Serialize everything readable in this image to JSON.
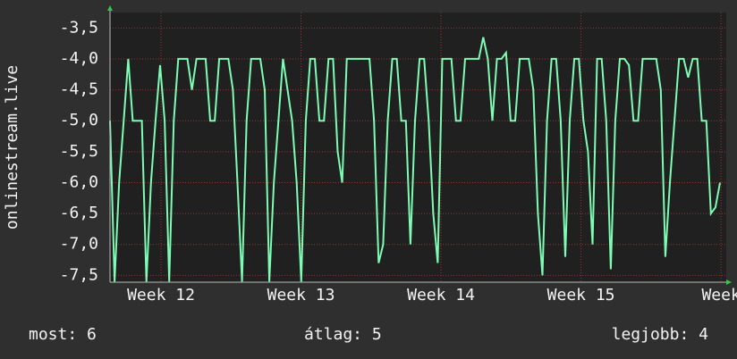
{
  "chart_data": {
    "type": "line",
    "y_label": "onlinestream.live",
    "values": [
      -5,
      -7.6,
      -6,
      -5,
      -4,
      -5,
      -5,
      -5,
      -7.6,
      -6,
      -5,
      -4.1,
      -5,
      -7.6,
      -5,
      -4,
      -4,
      -4,
      -4.5,
      -4,
      -4,
      -4,
      -5,
      -5,
      -4,
      -4,
      -4,
      -4.5,
      -6,
      -7.6,
      -5,
      -4,
      -4,
      -4,
      -4.5,
      -7.6,
      -6,
      -5,
      -4,
      -4.5,
      -5,
      -6,
      -7.6,
      -5,
      -4,
      -4,
      -5,
      -5,
      -4,
      -4,
      -5.5,
      -6,
      -4,
      -4,
      -4,
      -4,
      -4,
      -4,
      -5,
      -7.3,
      -7,
      -5,
      -4,
      -4,
      -5,
      -5,
      -7,
      -5,
      -4,
      -4,
      -5,
      -6.5,
      -7.3,
      -4,
      -4,
      -4,
      -5,
      -5,
      -4,
      -4,
      -4,
      -4,
      -3.65,
      -4,
      -5,
      -4,
      -4,
      -3.9,
      -5,
      -5,
      -4,
      -4,
      -4,
      -4.5,
      -6.5,
      -7.5,
      -5,
      -4,
      -4,
      -5,
      -7.2,
      -5,
      -4,
      -4,
      -5,
      -5.5,
      -7,
      -4,
      -4,
      -5,
      -7.4,
      -5,
      -4,
      -4,
      -4.1,
      -5,
      -5,
      -4,
      -4,
      -4,
      -4,
      -4.5,
      -7.2,
      -6,
      -5,
      -4,
      -4,
      -4.3,
      -4,
      -4,
      -5,
      -5,
      -6.5,
      -6.4,
      -6
    ],
    "color": "#7dfcb4",
    "xlim": [
      0,
      30.5
    ],
    "xticks": [
      {
        "value": 2.55,
        "label": "Week 12"
      },
      {
        "value": 9.55,
        "label": "Week 13"
      },
      {
        "value": 16.55,
        "label": "Week 14"
      },
      {
        "value": 23.55,
        "label": "Week 15"
      },
      {
        "value": 30.55,
        "label": "Week"
      }
    ],
    "ylim": [
      -7.61,
      -3.25
    ],
    "yticks": [
      {
        "value": -3.5,
        "label": "-3,5"
      },
      {
        "value": -4,
        "label": "-4,0"
      },
      {
        "value": -4.5,
        "label": "-4,5"
      },
      {
        "value": -5,
        "label": "-5,0"
      },
      {
        "value": -5.5,
        "label": "-5,5"
      },
      {
        "value": -6,
        "label": "-6,0"
      },
      {
        "value": -6.5,
        "label": "-6,5"
      },
      {
        "value": -7,
        "label": "-7,0"
      },
      {
        "value": -7.5,
        "label": "-7,5"
      }
    ],
    "grid": true
  },
  "footer": {
    "current": "most: 6",
    "average": "átlag: 5",
    "best": "legjobb: 4"
  }
}
